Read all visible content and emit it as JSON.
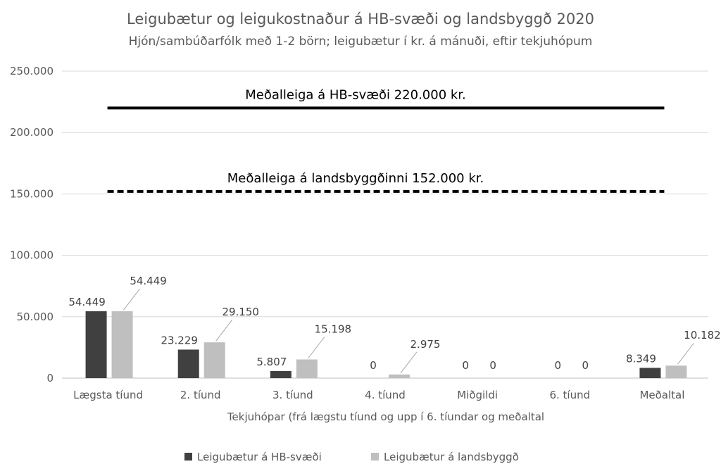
{
  "chart_data": {
    "type": "bar",
    "title": "Leigubætur og leigukostnaður á HB-svæði og landsbyggð 2020",
    "subtitle": "Hjón/sambúðarfólk með 1-2 börn; leigubætur í kr. á mánuði, eftir tekjuhópum",
    "xlabel": "Tekjuhópar (frá lægstu tíund og upp í 6. tíundar og meðaltal",
    "ylabel": "",
    "ylim": [
      0,
      250000
    ],
    "yticks": [
      "0",
      "50.000",
      "100.000",
      "150.000",
      "200.000",
      "250.000"
    ],
    "ytick_values": [
      0,
      50000,
      100000,
      150000,
      200000,
      250000
    ],
    "grid": true,
    "legend_position": "bottom",
    "categories": [
      "Lægsta tíund",
      "2. tíund",
      "3. tíund",
      "4. tíund",
      "Miðgildi",
      "6. tíund",
      "Meðaltal"
    ],
    "series": [
      {
        "name": "Leigubætur á HB-svæði",
        "color": "#404040",
        "values": [
          54449,
          23229,
          5807,
          0,
          0,
          0,
          8349
        ],
        "labels": [
          "54.449",
          "23.229",
          "5.807",
          "0",
          "0",
          "0",
          "8.349"
        ]
      },
      {
        "name": "Leigubætur á landsbyggð",
        "color": "#bfbfbf",
        "values": [
          54449,
          29150,
          15198,
          2975,
          0,
          0,
          10182
        ],
        "labels": [
          "54.449",
          "29.150",
          "15.198",
          "2.975",
          "0",
          "0",
          "10.182"
        ]
      }
    ],
    "reference_lines": [
      {
        "label": "Meðalleiga á HB-svæði 220.000 kr.",
        "value": 220000,
        "style": "solid",
        "color": "#000000"
      },
      {
        "label": "Meðalleiga á landsbyggðinni 152.000 kr.",
        "value": 152000,
        "style": "dashed",
        "color": "#000000"
      }
    ]
  }
}
